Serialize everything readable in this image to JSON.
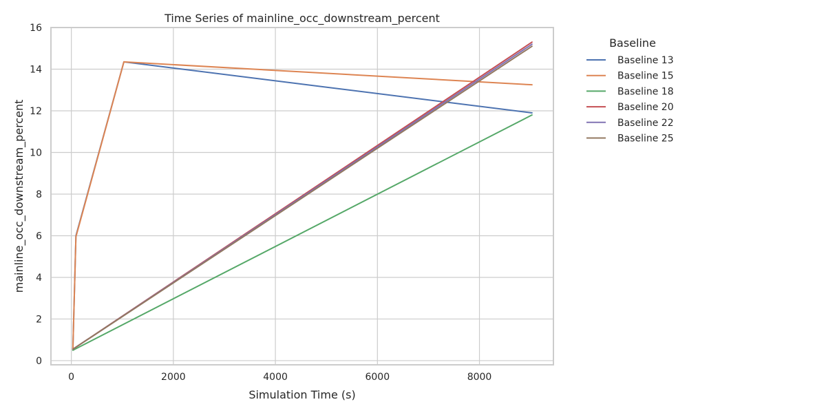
{
  "chart_data": {
    "type": "line",
    "title": "Time Series of mainline_occ_downstream_percent",
    "xlabel": "Simulation Time (s)",
    "ylabel": "mainline_occ_downstream_percent",
    "xlim": [
      -400,
      9450
    ],
    "ylim": [
      -0.2,
      16
    ],
    "xticks": [
      0,
      2000,
      4000,
      6000,
      8000
    ],
    "xtick_labels": [
      "0",
      "2000",
      "4000",
      "6000",
      "8000"
    ],
    "yticks": [
      0,
      2,
      4,
      6,
      8,
      10,
      12,
      14,
      16
    ],
    "ytick_labels": [
      "0",
      "2",
      "4",
      "6",
      "8",
      "10",
      "12",
      "14",
      "16"
    ],
    "grid": true,
    "legend_title": "Baseline",
    "legend_position": "outside-right-top",
    "series": [
      {
        "name": "Baseline 13",
        "color": "#4c72b0",
        "x": [
          30,
          90,
          1030,
          9030
        ],
        "y": [
          0.55,
          6.0,
          14.35,
          11.9
        ]
      },
      {
        "name": "Baseline 15",
        "color": "#dd8452",
        "x": [
          30,
          90,
          1030,
          9030
        ],
        "y": [
          0.55,
          5.95,
          14.35,
          13.25
        ]
      },
      {
        "name": "Baseline 18",
        "color": "#55a868",
        "x": [
          30,
          9030
        ],
        "y": [
          0.5,
          11.8
        ]
      },
      {
        "name": "Baseline 20",
        "color": "#c44e52",
        "x": [
          30,
          9030
        ],
        "y": [
          0.55,
          15.3
        ]
      },
      {
        "name": "Baseline 22",
        "color": "#8172b3",
        "x": [
          30,
          9030
        ],
        "y": [
          0.55,
          15.2
        ]
      },
      {
        "name": "Baseline 25",
        "color": "#937860",
        "x": [
          30,
          9030
        ],
        "y": [
          0.55,
          15.1
        ]
      }
    ]
  }
}
